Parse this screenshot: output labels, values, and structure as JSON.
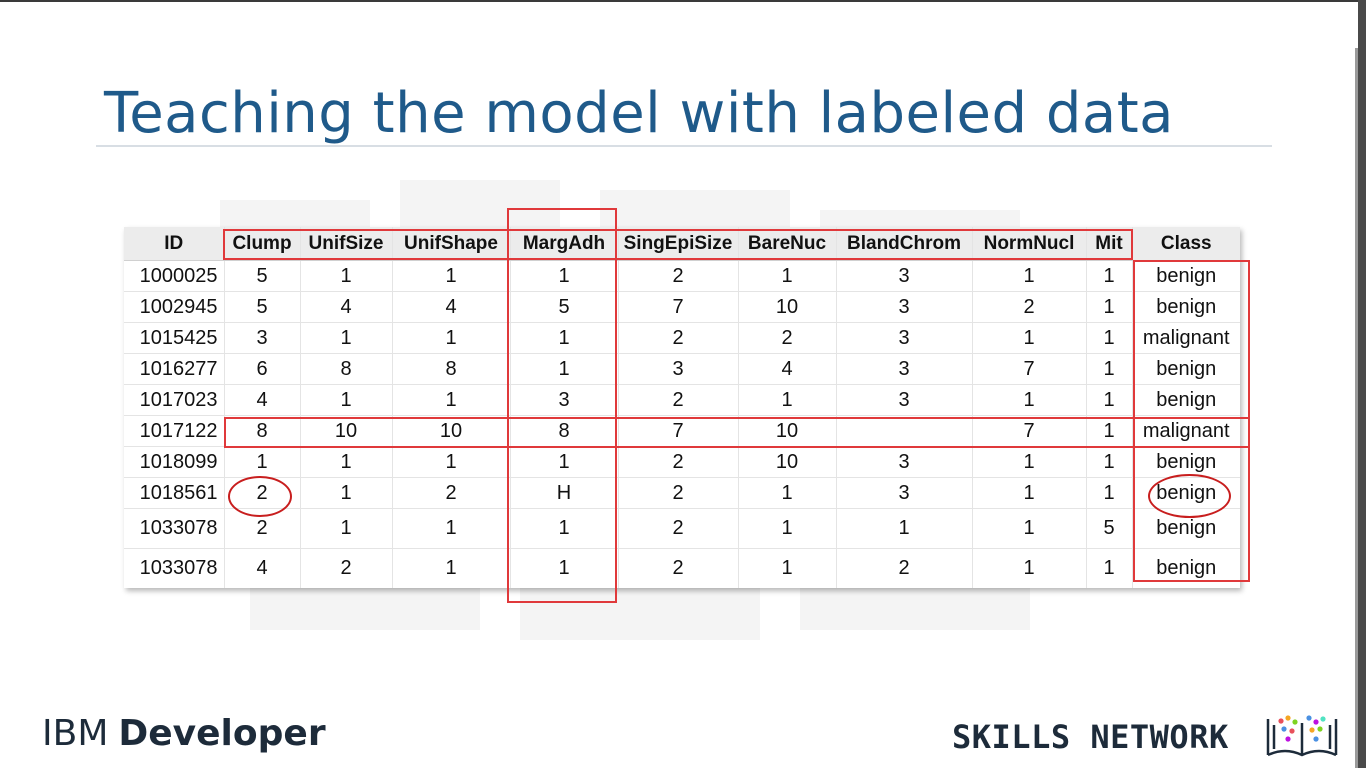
{
  "slide": {
    "title": "Teaching the model with labeled data"
  },
  "table": {
    "columns": [
      "ID",
      "Clump",
      "UnifSize",
      "UnifShape",
      "MargAdh",
      "SingEpiSize",
      "BareNuc",
      "BlandChrom",
      "NormNucl",
      "Mit",
      "Class"
    ],
    "rows": [
      [
        "1000025",
        "5",
        "1",
        "1",
        "1",
        "2",
        "1",
        "3",
        "1",
        "1",
        "benign"
      ],
      [
        "1002945",
        "5",
        "4",
        "4",
        "5",
        "7",
        "10",
        "3",
        "2",
        "1",
        "benign"
      ],
      [
        "1015425",
        "3",
        "1",
        "1",
        "1",
        "2",
        "2",
        "3",
        "1",
        "1",
        "malignant"
      ],
      [
        "1016277",
        "6",
        "8",
        "8",
        "1",
        "3",
        "4",
        "3",
        "7",
        "1",
        "benign"
      ],
      [
        "1017023",
        "4",
        "1",
        "1",
        "3",
        "2",
        "1",
        "3",
        "1",
        "1",
        "benign"
      ],
      [
        "1017122",
        "8",
        "10",
        "10",
        "8",
        "7",
        "10",
        "",
        "7",
        "1",
        "malignant"
      ],
      [
        "1018099",
        "1",
        "1",
        "1",
        "1",
        "2",
        "10",
        "3",
        "1",
        "1",
        "benign"
      ],
      [
        "1018561",
        "2",
        "1",
        "2",
        "H",
        "2",
        "1",
        "3",
        "1",
        "1",
        "benign"
      ],
      [
        "1033078",
        "2",
        "1",
        "1",
        "1",
        "2",
        "1",
        "1",
        "1",
        "5",
        "benign"
      ],
      [
        "1033078",
        "4",
        "2",
        "1",
        "1",
        "2",
        "1",
        "2",
        "1",
        "1",
        "benign"
      ]
    ]
  },
  "highlight_color": "#e0393b",
  "footer": {
    "ibm_prefix": "IBM",
    "ibm_product": "Developer",
    "skills_text": "SKILLS NETWORK",
    "skills_logo_icon": "open-book-dots-icon"
  }
}
